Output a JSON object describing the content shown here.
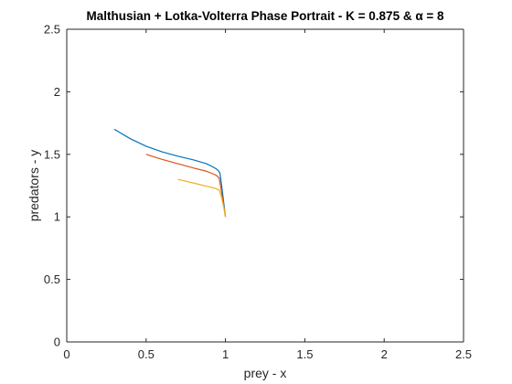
{
  "chart_data": {
    "type": "line",
    "title": "Malthusian + Lotka-Volterra Phase Portrait - K = 0.875 & α = 8",
    "xlabel": "prey - x",
    "ylabel": "predators - y",
    "xlim": [
      0,
      2.5
    ],
    "ylim": [
      0,
      2.5
    ],
    "xticks": [
      0,
      0.5,
      1,
      1.5,
      2,
      2.5
    ],
    "yticks": [
      0,
      0.5,
      1,
      1.5,
      2,
      2.5
    ],
    "xtick_labels": [
      "0",
      "0.5",
      "1",
      "1.5",
      "2",
      "2.5"
    ],
    "ytick_labels": [
      "0",
      "0.5",
      "1",
      "1.5",
      "2",
      "2.5"
    ],
    "grid": false,
    "legend": "none",
    "series": [
      {
        "color": "#0072BD",
        "x": [
          0.3,
          0.4,
          0.5,
          0.6,
          0.7,
          0.8,
          0.88,
          0.92,
          0.94,
          0.955,
          0.965,
          0.975,
          1.0
        ],
        "y": [
          1.7,
          1.625,
          1.565,
          1.52,
          1.485,
          1.455,
          1.425,
          1.4,
          1.385,
          1.37,
          1.35,
          1.26,
          1.0
        ]
      },
      {
        "color": "#D95319",
        "x": [
          0.5,
          0.6,
          0.7,
          0.8,
          0.88,
          0.92,
          0.945,
          0.96,
          0.97,
          0.985,
          1.0
        ],
        "y": [
          1.5,
          1.46,
          1.425,
          1.39,
          1.365,
          1.345,
          1.33,
          1.31,
          1.24,
          1.12,
          1.0
        ]
      },
      {
        "color": "#EDB120",
        "x": [
          0.7,
          0.8,
          0.88,
          0.93,
          0.96,
          0.975,
          0.99,
          1.0
        ],
        "y": [
          1.3,
          1.27,
          1.245,
          1.23,
          1.215,
          1.16,
          1.07,
          1.0
        ]
      }
    ]
  }
}
